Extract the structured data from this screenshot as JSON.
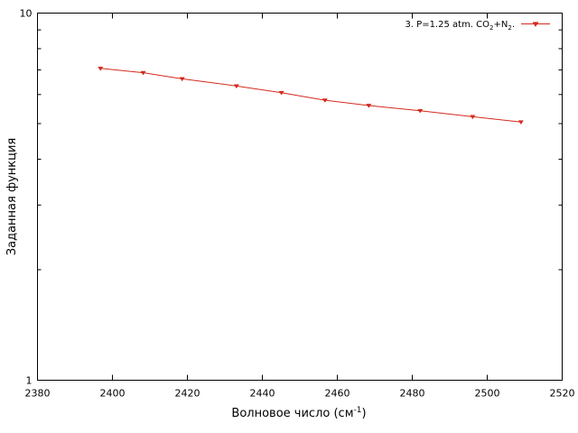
{
  "chart_data": {
    "type": "line",
    "xlabel": "Волновое число (см",
    "xlabel_sup": "-1",
    "xlabel_end": ")",
    "ylabel": "Заданная функция",
    "xlim": [
      2380,
      2520
    ],
    "ylim": [
      1,
      10
    ],
    "y_scale": "log",
    "grid": false,
    "legend_position": "top-right",
    "x_ticks": [
      "2380",
      "2400",
      "2420",
      "2440",
      "2460",
      "2480",
      "2500",
      "2520"
    ],
    "y_ticks": [
      "1",
      "10"
    ],
    "series": [
      {
        "legend": {
          "prefix": "3. P=1.25 atm. CO",
          "sub1": "2",
          "mid": "+N",
          "sub2": "2",
          "suffix": "."
        },
        "color": "#d42a1e",
        "marker": "triangle-down",
        "x": [
          2396.8,
          2408.2,
          2418.6,
          2433.1,
          2445.1,
          2456.7,
          2468.4,
          2482.1,
          2496.1,
          2509.0
        ],
        "y": [
          7.07,
          6.88,
          6.62,
          6.33,
          6.07,
          5.79,
          5.6,
          5.42,
          5.22,
          5.05
        ]
      }
    ]
  }
}
